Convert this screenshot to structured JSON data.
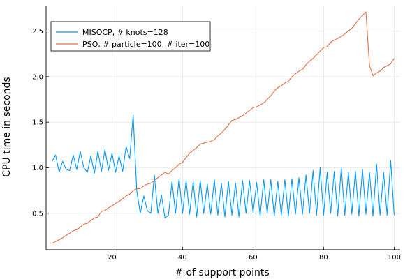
{
  "chart_data": {
    "type": "line",
    "xlabel": "# of support points",
    "ylabel": "CPU time in seconds",
    "xlim": [
      1.3,
      101.7
    ],
    "ylim": [
      0.1,
      2.78
    ],
    "x_ticks": [
      20,
      40,
      60,
      80,
      100
    ],
    "y_ticks": [
      0.5,
      1.0,
      1.5,
      2.0,
      2.5
    ],
    "x_tick_labels": [
      "20",
      "40",
      "60",
      "80",
      "100"
    ],
    "y_tick_labels": [
      "0.5",
      "1.0",
      "1.5",
      "2.0",
      "2.5"
    ],
    "grid": true,
    "legend_position": "top-left",
    "x": [
      3,
      4,
      5,
      6,
      7,
      8,
      9,
      10,
      11,
      12,
      13,
      14,
      15,
      16,
      17,
      18,
      19,
      20,
      21,
      22,
      23,
      24,
      25,
      26,
      27,
      28,
      29,
      30,
      31,
      32,
      33,
      34,
      35,
      36,
      37,
      38,
      39,
      40,
      41,
      42,
      43,
      44,
      45,
      46,
      47,
      48,
      49,
      50,
      51,
      52,
      53,
      54,
      55,
      56,
      57,
      58,
      59,
      60,
      61,
      62,
      63,
      64,
      65,
      66,
      67,
      68,
      69,
      70,
      71,
      72,
      73,
      74,
      75,
      76,
      77,
      78,
      79,
      80,
      81,
      82,
      83,
      84,
      85,
      86,
      87,
      88,
      89,
      90,
      91,
      92,
      93,
      94,
      95,
      96,
      97,
      98,
      99,
      100
    ],
    "series": [
      {
        "name": "MISOCP, # knots=128",
        "color": "#009AF9",
        "values": [
          1.07,
          1.14,
          0.95,
          1.07,
          0.98,
          0.97,
          1.14,
          0.98,
          1.18,
          1.0,
          0.95,
          1.13,
          0.94,
          1.18,
          0.96,
          1.2,
          0.97,
          1.16,
          0.95,
          1.13,
          0.96,
          1.23,
          1.1,
          1.58,
          0.75,
          0.5,
          0.69,
          0.53,
          0.5,
          0.92,
          0.5,
          0.7,
          0.45,
          0.48,
          0.85,
          0.5,
          0.88,
          0.5,
          0.86,
          0.49,
          0.85,
          0.46,
          0.86,
          0.5,
          0.82,
          0.49,
          0.87,
          0.48,
          0.83,
          0.46,
          0.85,
          0.48,
          0.83,
          0.46,
          0.86,
          0.5,
          0.86,
          0.51,
          0.84,
          0.47,
          0.87,
          0.5,
          0.87,
          0.47,
          0.85,
          0.48,
          0.87,
          0.47,
          0.88,
          0.49,
          0.89,
          0.49,
          0.92,
          0.5,
          0.97,
          0.48,
          1.0,
          0.48,
          0.95,
          0.5,
          0.96,
          0.47,
          1.0,
          0.48,
          0.95,
          0.49,
          0.96,
          0.47,
          0.98,
          0.49,
          0.95,
          0.47,
          1.04,
          0.48,
          0.95,
          0.48,
          1.08,
          0.48
        ]
      },
      {
        "name": "PSO, # particle=100, # iter=100",
        "color": "#E26F46",
        "values": [
          0.17,
          0.19,
          0.21,
          0.23,
          0.26,
          0.28,
          0.31,
          0.32,
          0.35,
          0.38,
          0.39,
          0.42,
          0.45,
          0.46,
          0.52,
          0.53,
          0.56,
          0.58,
          0.61,
          0.63,
          0.66,
          0.69,
          0.71,
          0.75,
          0.77,
          0.77,
          0.8,
          0.82,
          0.83,
          0.86,
          0.89,
          0.92,
          0.95,
          0.93,
          0.97,
          1.0,
          1.04,
          1.06,
          1.11,
          1.16,
          1.19,
          1.22,
          1.26,
          1.27,
          1.28,
          1.29,
          1.31,
          1.35,
          1.38,
          1.42,
          1.47,
          1.52,
          1.53,
          1.55,
          1.57,
          1.6,
          1.63,
          1.66,
          1.67,
          1.69,
          1.71,
          1.75,
          1.79,
          1.84,
          1.88,
          1.9,
          1.93,
          1.95,
          2.0,
          2.03,
          2.06,
          2.08,
          2.13,
          2.17,
          2.2,
          2.24,
          2.28,
          2.32,
          2.33,
          2.38,
          2.4,
          2.42,
          2.44,
          2.47,
          2.5,
          2.53,
          2.58,
          2.63,
          2.67,
          2.71,
          2.12,
          2.01,
          2.04,
          2.06,
          2.1,
          2.12,
          2.14,
          2.2
        ]
      }
    ]
  }
}
